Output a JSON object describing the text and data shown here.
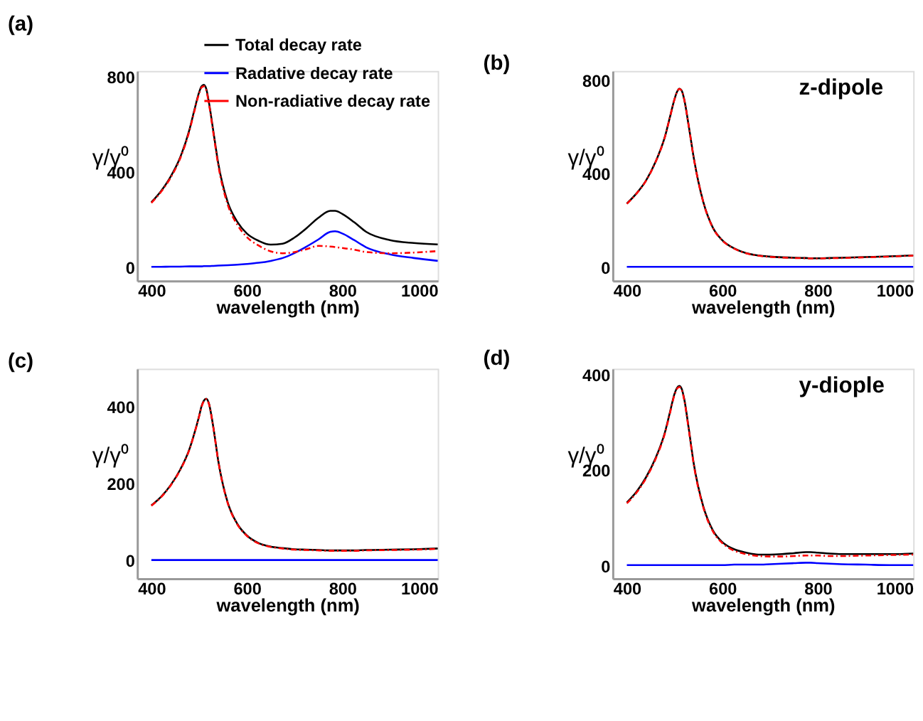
{
  "chart_data": [
    {
      "type": "line",
      "title": "(a)",
      "xlabel": "wavelength (nm)",
      "ylabel": "γ/γ⁰",
      "x": [
        400,
        420,
        440,
        460,
        480,
        490,
        500,
        505,
        510,
        515,
        520,
        530,
        540,
        560,
        580,
        600,
        625,
        650,
        675,
        700,
        725,
        750,
        775,
        785,
        800,
        825,
        850,
        900,
        950,
        1000
      ],
      "xlim": [
        370,
        1000
      ],
      "xticks": [
        400,
        600,
        800,
        {
          "value": 1000,
          "label": "1000"
        }
      ],
      "ylim": [
        -55,
        825
      ],
      "yticks": [
        0,
        400,
        800
      ],
      "legend": "top right",
      "grid": false,
      "series": [
        {
          "name": "Total decay rate",
          "color": "#000000",
          "line_style": "solid",
          "values": [
            274,
            320,
            380,
            460,
            580,
            660,
            735,
            760,
            767,
            750,
            700,
            570,
            439,
            274,
            192,
            143,
            112,
            96,
            100,
            126,
            165,
            209,
            238,
            238,
            225,
            190,
            150,
            115,
            103,
            97
          ]
        },
        {
          "name": "Radative decay rate",
          "color": "#0000ff",
          "line_style": "solid",
          "values": [
            3,
            3,
            4,
            4,
            5,
            5,
            5,
            5,
            6,
            6,
            6,
            7,
            8,
            10,
            12,
            15,
            20,
            28,
            40,
            61,
            88,
            118,
            150,
            152,
            143,
            115,
            85,
            55,
            40,
            28
          ]
        },
        {
          "name": "Non-radiative decay rate",
          "color": "#ff0000",
          "line_style": "dashed",
          "values": [
            271,
            317,
            376,
            456,
            575,
            655,
            730,
            755,
            761,
            744,
            694,
            563,
            431,
            264,
            180,
            128,
            92,
            68,
            60,
            65,
            77,
            91,
            88,
            86,
            82,
            75,
            65,
            60,
            63,
            69
          ]
        }
      ]
    },
    {
      "type": "line",
      "title": "(b)",
      "xlabel": "wavelength (nm)",
      "ylabel": "γ/γ⁰",
      "annotations": [
        "z-dipole"
      ],
      "x": [
        400,
        420,
        440,
        460,
        480,
        490,
        500,
        505,
        510,
        515,
        520,
        530,
        540,
        560,
        580,
        600,
        625,
        650,
        675,
        700,
        725,
        750,
        775,
        785,
        800,
        825,
        850,
        900,
        950,
        1000
      ],
      "xlim": [
        370,
        1000
      ],
      "xticks": [
        400,
        600,
        800,
        {
          "value": 1000,
          "label": "1000"
        }
      ],
      "ylim": [
        -58,
        840
      ],
      "yticks": [
        0,
        400,
        800
      ],
      "grid": false,
      "series": [
        {
          "color": "#000000",
          "line_style": "solid",
          "values": [
            272,
            315,
            370,
            450,
            560,
            640,
            720,
            750,
            764,
            755,
            720,
            600,
            470,
            280,
            170,
            115,
            80,
            60,
            50,
            45,
            42,
            40,
            39,
            38,
            38,
            39,
            40,
            43,
            46,
            50
          ]
        },
        {
          "color": "#0000ff",
          "line_style": "solid",
          "values": [
            1,
            1,
            1,
            1,
            1,
            1,
            1,
            1,
            1,
            1,
            1,
            1,
            1,
            1,
            1,
            1,
            1,
            1,
            1,
            1,
            1,
            1,
            1,
            1,
            1,
            1,
            1,
            1,
            1,
            1
          ]
        },
        {
          "color": "#ff0000",
          "line_style": "dashed",
          "values": [
            271,
            314,
            369,
            449,
            559,
            639,
            719,
            749,
            763,
            754,
            719,
            599,
            469,
            279,
            169,
            114,
            79,
            59,
            49,
            44,
            41,
            39,
            38,
            37,
            37,
            38,
            39,
            42,
            45,
            49
          ]
        }
      ]
    },
    {
      "type": "line",
      "title": "(c)",
      "xlabel": "wavelength (nm)",
      "ylabel": "γ/γ⁰",
      "x": [
        400,
        420,
        440,
        460,
        480,
        490,
        500,
        505,
        510,
        515,
        520,
        530,
        540,
        560,
        580,
        600,
        625,
        650,
        675,
        700,
        725,
        750,
        775,
        785,
        800,
        825,
        850,
        900,
        950,
        1000
      ],
      "xlim": [
        370,
        1000
      ],
      "xticks": [
        400,
        600,
        800,
        {
          "value": 1000,
          "label": "1000"
        }
      ],
      "ylim": [
        -47,
        498
      ],
      "yticks": [
        0,
        200,
        400
      ],
      "grid": false,
      "series": [
        {
          "color": "#000000",
          "line_style": "solid",
          "values": [
            143,
            165,
            195,
            235,
            290,
            330,
            375,
            400,
            415,
            420,
            410,
            345,
            260,
            150,
            95,
            65,
            45,
            36,
            32,
            29,
            28,
            27,
            26,
            26,
            26,
            26,
            27,
            28,
            29,
            31
          ]
        },
        {
          "color": "#0000ff",
          "line_style": "solid",
          "values": [
            1,
            1,
            1,
            1,
            1,
            1,
            1,
            1,
            1,
            1,
            1,
            1,
            1,
            1,
            1,
            1,
            1,
            1,
            1,
            1,
            1,
            1,
            1,
            1,
            1,
            1,
            1,
            1,
            1,
            1
          ]
        },
        {
          "color": "#ff0000",
          "line_style": "dashed",
          "values": [
            142,
            164,
            194,
            234,
            289,
            329,
            374,
            399,
            414,
            419,
            409,
            344,
            259,
            149,
            94,
            64,
            44,
            35,
            31,
            28,
            27,
            26,
            25,
            25,
            25,
            25,
            26,
            27,
            28,
            30
          ]
        }
      ]
    },
    {
      "type": "line",
      "title": "(d)",
      "xlabel": "wavelength (nm)",
      "ylabel": "γ/γ⁰",
      "annotations": [
        "y-diople"
      ],
      "x": [
        400,
        420,
        440,
        460,
        480,
        490,
        500,
        505,
        510,
        515,
        520,
        530,
        540,
        560,
        580,
        600,
        625,
        650,
        675,
        700,
        725,
        750,
        775,
        785,
        800,
        825,
        850,
        900,
        950,
        1000
      ],
      "xlim": [
        370,
        1000
      ],
      "xticks": [
        400,
        600,
        800,
        {
          "value": 1000,
          "label": "1000"
        }
      ],
      "ylim": [
        -26,
        412
      ],
      "yticks": [
        0,
        200,
        400
      ],
      "grid": false,
      "series": [
        {
          "color": "#000000",
          "line_style": "solid",
          "values": [
            133,
            155,
            185,
            225,
            280,
            320,
            360,
            372,
            376,
            370,
            350,
            285,
            215,
            125,
            75,
            50,
            35,
            28,
            24,
            24,
            25,
            27,
            29,
            29,
            28,
            26,
            25,
            25,
            25,
            26
          ]
        },
        {
          "color": "#0000ff",
          "line_style": "solid",
          "values": [
            2,
            2,
            2,
            2,
            2,
            2,
            2,
            2,
            2,
            2,
            2,
            2,
            2,
            2,
            2,
            2,
            3,
            3,
            3,
            4,
            5,
            6,
            7,
            7,
            6,
            5,
            4,
            3,
            2,
            2
          ]
        },
        {
          "color": "#ff0000",
          "line_style": "dashed",
          "values": [
            131,
            153,
            183,
            223,
            278,
            318,
            358,
            370,
            374,
            368,
            348,
            283,
            213,
            123,
            73,
            48,
            32,
            25,
            21,
            20,
            20,
            21,
            22,
            22,
            22,
            21,
            21,
            22,
            23,
            24
          ]
        }
      ]
    }
  ]
}
